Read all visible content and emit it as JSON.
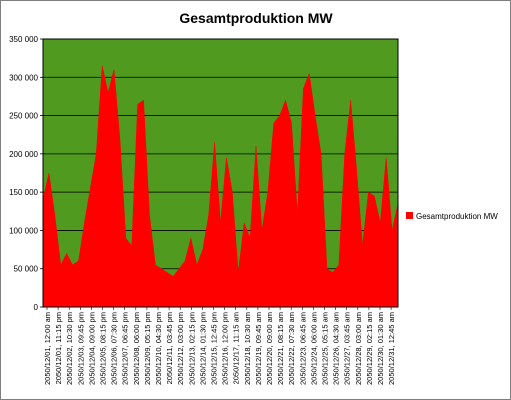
{
  "chart_data": {
    "type": "area",
    "title": "Gesamtproduktion MW",
    "legend": "right",
    "grid": true,
    "colors": {
      "plot_background": "#4f9a1f",
      "series": "#ff0000",
      "grid": "#000000"
    },
    "ylim": [
      0,
      350000
    ],
    "yticks": [
      "0",
      "50 000",
      "100 000",
      "150 000",
      "200 000",
      "250 000",
      "300 000",
      "350 000"
    ],
    "xticks": [
      "2050/12/01, 12:00 am",
      "2050/12/01, 11:15 pm",
      "2050/12/02, 10:30 pm",
      "2050/12/03, 09:45 pm",
      "2050/12/04, 09:00 pm",
      "2050/12/05, 08:15 pm",
      "2050/12/06, 07:30 pm",
      "2050/12/07, 06:45 pm",
      "2050/12/08, 06:00 pm",
      "2050/12/09, 05:15 pm",
      "2050/12/10, 04:30 pm",
      "2050/12/11, 03:45 pm",
      "2050/12/12, 03:00 pm",
      "2050/12/13, 02:15 pm",
      "2050/12/14, 01:30 pm",
      "2050/12/15, 12:45 pm",
      "2050/12/16, 12:00 pm",
      "2050/12/17, 11:15 am",
      "2050/12/18, 10:30 am",
      "2050/12/19, 09:45 am",
      "2050/12/20, 09:00 am",
      "2050/12/21, 08:15 am",
      "2050/12/22, 07:30 am",
      "2050/12/23, 06:45 am",
      "2050/12/24, 06:00 am",
      "2050/12/25, 05:15 am",
      "2050/12/26, 04:30 am",
      "2050/12/27, 03:45 am",
      "2050/12/28, 03:00 am",
      "2050/12/29, 02:15 am",
      "2050/12/30, 01:30 am",
      "2050/12/31, 12:45 am"
    ],
    "series": [
      {
        "name": "Gesamtproduktion MW",
        "values": [
          140000,
          175000,
          120000,
          55000,
          70000,
          55000,
          60000,
          110000,
          155000,
          200000,
          315000,
          280000,
          310000,
          220000,
          90000,
          80000,
          265000,
          270000,
          120000,
          55000,
          50000,
          45000,
          40000,
          50000,
          60000,
          90000,
          55000,
          75000,
          120000,
          215000,
          110000,
          195000,
          150000,
          45000,
          110000,
          90000,
          210000,
          100000,
          150000,
          240000,
          250000,
          270000,
          240000,
          120000,
          285000,
          305000,
          250000,
          200000,
          50000,
          45000,
          55000,
          200000,
          270000,
          180000,
          80000,
          150000,
          145000,
          110000,
          195000,
          100000,
          135000
        ]
      }
    ]
  }
}
